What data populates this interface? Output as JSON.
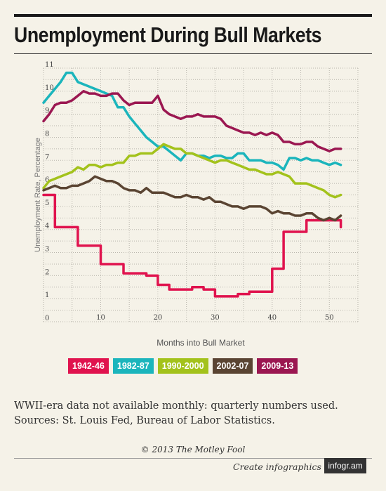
{
  "title": "Unemployment During Bull Markets",
  "note_lines": [
    "WWII-era data not available monthly: quarterly numbers used.",
    "Sources: St. Louis Fed, Bureau of Labor Statistics."
  ],
  "copyright": "© 2013 The Motley Fool",
  "footer": {
    "create_label": "Create infographics",
    "brand": "infogr.am"
  },
  "colors": {
    "s1942": "#e0134e",
    "s1982": "#1bb5bc",
    "s1990": "#a3c21b",
    "s2002": "#5a4432",
    "s2009": "#9b1751"
  },
  "chart_data": {
    "type": "line",
    "xlabel": "Months into Bull Market",
    "ylabel": "Unemployment Rate, Percentage",
    "xlim": [
      0,
      55
    ],
    "ylim": [
      0,
      11
    ],
    "xticks": [
      10,
      20,
      30,
      40,
      50
    ],
    "yticks": [
      0,
      1,
      2,
      3,
      4,
      5,
      6,
      7,
      8,
      9,
      10,
      11
    ],
    "grid": true,
    "legend_position": "bottom",
    "series": [
      {
        "name": "1942-46",
        "color": "#e0134e",
        "x": [
          0,
          2,
          2,
          4,
          4,
          6,
          6,
          8,
          8,
          10,
          10,
          12,
          12,
          14,
          14,
          16,
          16,
          18,
          18,
          20,
          20,
          22,
          22,
          24,
          24,
          26,
          26,
          28,
          28,
          30,
          30,
          32,
          32,
          34,
          34,
          36,
          36,
          38,
          38,
          40,
          40,
          42,
          42,
          44,
          44,
          46,
          46,
          48,
          48,
          50,
          50,
          52,
          52
        ],
        "y": [
          5.5,
          5.5,
          4.1,
          4.1,
          4.1,
          4.1,
          3.3,
          3.3,
          3.3,
          3.3,
          2.5,
          2.5,
          2.5,
          2.5,
          2.1,
          2.1,
          2.1,
          2.1,
          2.0,
          2.0,
          1.6,
          1.6,
          1.4,
          1.4,
          1.4,
          1.4,
          1.5,
          1.5,
          1.4,
          1.4,
          1.1,
          1.1,
          1.1,
          1.1,
          1.2,
          1.2,
          1.3,
          1.3,
          1.3,
          1.3,
          2.3,
          2.3,
          3.9,
          3.9,
          3.9,
          3.9,
          4.4,
          4.4,
          4.4,
          4.4,
          4.4,
          4.4,
          4.1
        ]
      },
      {
        "name": "1982-87",
        "color": "#1bb5bc",
        "x": [
          0,
          1,
          2,
          3,
          4,
          5,
          6,
          7,
          8,
          9,
          10,
          11,
          12,
          13,
          14,
          15,
          16,
          17,
          18,
          19,
          20,
          21,
          22,
          23,
          24,
          25,
          26,
          27,
          28,
          29,
          30,
          31,
          32,
          33,
          34,
          35,
          36,
          37,
          38,
          39,
          40,
          41,
          42,
          43,
          44,
          45,
          46,
          47,
          48,
          49,
          50,
          51,
          52
        ],
        "y": [
          9.5,
          9.8,
          10.1,
          10.4,
          10.8,
          10.8,
          10.4,
          10.3,
          10.2,
          10.1,
          10.0,
          9.9,
          9.8,
          9.3,
          9.3,
          8.9,
          8.6,
          8.3,
          8.0,
          7.8,
          7.6,
          7.6,
          7.4,
          7.2,
          7.0,
          7.3,
          7.3,
          7.2,
          7.2,
          7.1,
          7.2,
          7.2,
          7.1,
          7.1,
          7.3,
          7.3,
          7.0,
          7.0,
          7.0,
          6.9,
          6.9,
          6.8,
          6.6,
          7.1,
          7.1,
          7.0,
          7.1,
          7.0,
          7.0,
          6.9,
          6.8,
          6.9,
          6.8
        ]
      },
      {
        "name": "1990-2000",
        "color": "#a3c21b",
        "x": [
          0,
          1,
          2,
          3,
          4,
          5,
          6,
          7,
          8,
          9,
          10,
          11,
          12,
          13,
          14,
          15,
          16,
          17,
          18,
          19,
          20,
          21,
          22,
          23,
          24,
          25,
          26,
          27,
          28,
          29,
          30,
          31,
          32,
          33,
          34,
          35,
          36,
          37,
          38,
          39,
          40,
          41,
          42,
          43,
          44,
          45,
          46,
          47,
          48,
          49,
          50,
          51,
          52
        ],
        "y": [
          5.8,
          6.1,
          6.2,
          6.3,
          6.4,
          6.5,
          6.7,
          6.6,
          6.8,
          6.8,
          6.7,
          6.8,
          6.8,
          6.9,
          6.9,
          7.2,
          7.2,
          7.3,
          7.3,
          7.3,
          7.5,
          7.7,
          7.6,
          7.5,
          7.5,
          7.3,
          7.3,
          7.2,
          7.1,
          7.0,
          6.9,
          7.0,
          7.0,
          6.9,
          6.8,
          6.7,
          6.6,
          6.6,
          6.5,
          6.4,
          6.4,
          6.5,
          6.4,
          6.3,
          6.0,
          6.0,
          6.0,
          5.9,
          5.8,
          5.7,
          5.5,
          5.4,
          5.5
        ]
      },
      {
        "name": "2002-07",
        "color": "#5a4432",
        "x": [
          0,
          1,
          2,
          3,
          4,
          5,
          6,
          7,
          8,
          9,
          10,
          11,
          12,
          13,
          14,
          15,
          16,
          17,
          18,
          19,
          20,
          21,
          22,
          23,
          24,
          25,
          26,
          27,
          28,
          29,
          30,
          31,
          32,
          33,
          34,
          35,
          36,
          37,
          38,
          39,
          40,
          41,
          42,
          43,
          44,
          45,
          46,
          47,
          48,
          49,
          50,
          51,
          52
        ],
        "y": [
          5.7,
          5.8,
          5.9,
          5.8,
          5.8,
          5.9,
          5.9,
          6.0,
          6.1,
          6.3,
          6.2,
          6.1,
          6.1,
          6.0,
          5.8,
          5.7,
          5.7,
          5.6,
          5.8,
          5.6,
          5.6,
          5.6,
          5.5,
          5.4,
          5.4,
          5.5,
          5.4,
          5.4,
          5.3,
          5.4,
          5.2,
          5.2,
          5.1,
          5.0,
          5.0,
          4.9,
          5.0,
          5.0,
          5.0,
          4.9,
          4.7,
          4.8,
          4.7,
          4.7,
          4.6,
          4.6,
          4.7,
          4.7,
          4.5,
          4.4,
          4.5,
          4.4,
          4.6
        ]
      },
      {
        "name": "2009-13",
        "color": "#9b1751",
        "x": [
          0,
          1,
          2,
          3,
          4,
          5,
          6,
          7,
          8,
          9,
          10,
          11,
          12,
          13,
          14,
          15,
          16,
          17,
          18,
          19,
          20,
          21,
          22,
          23,
          24,
          25,
          26,
          27,
          28,
          29,
          30,
          31,
          32,
          33,
          34,
          35,
          36,
          37,
          38,
          39,
          40,
          41,
          42,
          43,
          44,
          45,
          46,
          47,
          48,
          49,
          50,
          51,
          52
        ],
        "y": [
          8.7,
          9.0,
          9.4,
          9.5,
          9.5,
          9.6,
          9.8,
          10.0,
          9.9,
          9.9,
          9.8,
          9.8,
          9.9,
          9.9,
          9.6,
          9.4,
          9.5,
          9.5,
          9.5,
          9.5,
          9.8,
          9.2,
          9.0,
          8.9,
          8.8,
          8.9,
          8.9,
          9.0,
          8.9,
          8.9,
          8.9,
          8.8,
          8.5,
          8.4,
          8.3,
          8.2,
          8.2,
          8.1,
          8.2,
          8.1,
          8.2,
          8.1,
          7.8,
          7.8,
          7.7,
          7.7,
          7.8,
          7.8,
          7.6,
          7.5,
          7.4,
          7.5,
          7.5
        ]
      }
    ]
  }
}
